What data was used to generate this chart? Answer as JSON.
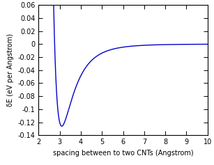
{
  "xlim": [
    2,
    10
  ],
  "ylim": [
    -0.14,
    0.06
  ],
  "xticks": [
    2,
    3,
    4,
    5,
    6,
    7,
    8,
    9,
    10
  ],
  "yticks": [
    -0.14,
    -0.12,
    -0.1,
    -0.08,
    -0.06,
    -0.04,
    -0.02,
    0.0,
    0.02,
    0.04,
    0.06
  ],
  "ytick_labels": [
    "-0.14",
    "-0.12",
    "-0.1",
    "-0.08",
    "-0.06",
    "-0.04",
    "-0.02",
    "0",
    "0.02",
    "0.04",
    "0.06"
  ],
  "xlabel": "spacing between to two CNTs (Angstrom)",
  "ylabel": "δE (eV per Angstrom)",
  "line_color": "#0000cc",
  "line_width": 1.0,
  "figsize": [
    3.07,
    2.37
  ],
  "dpi": 100,
  "r_min": 3.1,
  "epsilon": 0.126,
  "background": "#ffffff",
  "tick_fontsize": 7,
  "label_fontsize": 7
}
